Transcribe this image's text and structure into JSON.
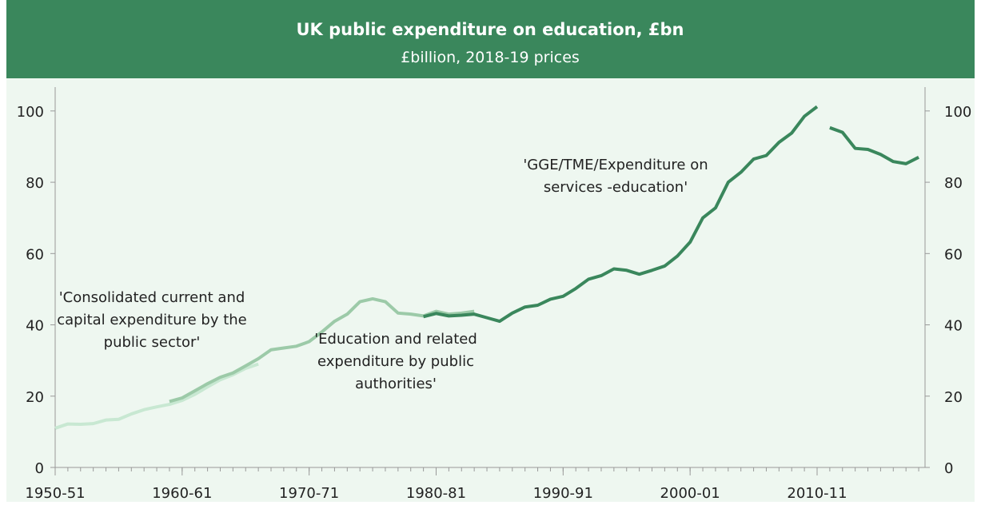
{
  "chart_data": {
    "type": "line",
    "title": "UK public expenditure on education, £bn",
    "subtitle": "£billion, 2018-19 prices",
    "xlim": [
      1950,
      2018.5
    ],
    "xticks": [
      {
        "value": 1950,
        "label": "1950-51"
      },
      {
        "value": 1960,
        "label": "1960-61"
      },
      {
        "value": 1970,
        "label": "1970-71"
      },
      {
        "value": 1980,
        "label": "1980-81"
      },
      {
        "value": 1990,
        "label": "1990-91"
      },
      {
        "value": 2000,
        "label": "2000-01"
      },
      {
        "value": 2010,
        "label": "2010-11"
      }
    ],
    "ylim": [
      0,
      104
    ],
    "yticks": [
      0,
      20,
      40,
      60,
      80,
      100
    ],
    "y2lim": [
      0,
      104
    ],
    "y2ticks": [
      0,
      20,
      40,
      60,
      80,
      100
    ],
    "series": [
      {
        "name": "'Consolidated current and capital expenditure by the public sector'",
        "color": "#c8e8d2",
        "x": [
          1950,
          1951,
          1952,
          1953,
          1954,
          1955,
          1956,
          1957,
          1958,
          1959,
          1960,
          1961,
          1962,
          1963,
          1964,
          1965,
          1966
        ],
        "values": [
          11,
          12.2,
          12.1,
          12.3,
          13.3,
          13.5,
          15,
          16.2,
          17,
          17.7,
          18.8,
          20.5,
          22.6,
          24.6,
          26,
          27.8,
          29
        ]
      },
      {
        "name": "'Education and related expenditure by public authorities'",
        "color": "#9ccaa8",
        "x": [
          1959,
          1960,
          1961,
          1962,
          1963,
          1964,
          1965,
          1966,
          1967,
          1968,
          1969,
          1970,
          1971,
          1972,
          1973,
          1974,
          1975,
          1976,
          1977,
          1978,
          1979,
          1980,
          1981,
          1982,
          1983
        ],
        "values": [
          18.5,
          19.5,
          21.5,
          23.5,
          25.3,
          26.5,
          28.5,
          30.5,
          33,
          33.5,
          34,
          35.3,
          38,
          41,
          43,
          46.5,
          47.3,
          46.5,
          43.3,
          43,
          42.5,
          43.8,
          43,
          43.3,
          43.8
        ]
      },
      {
        "name": "'GGE/TME/Expenditure on services -education'",
        "color": "#3a875c",
        "x": [
          1979,
          1980,
          1981,
          1982,
          1983,
          1984,
          1985,
          1986,
          1987,
          1988,
          1989,
          1990,
          1991,
          1992,
          1993,
          1994,
          1995,
          1996,
          1997,
          1998,
          1999,
          2000,
          2001,
          2002,
          2003,
          2004,
          2005,
          2006,
          2007,
          2008,
          2009,
          2010,
          2010.5,
          2011,
          2012,
          2013,
          2014,
          2015,
          2016,
          2017,
          2018
        ],
        "values": [
          42.3,
          43.2,
          42.5,
          42.7,
          43,
          42,
          41,
          43.3,
          45,
          45.5,
          47.2,
          48,
          50.2,
          52.8,
          53.8,
          55.7,
          55.3,
          54.2,
          55.3,
          56.5,
          59.3,
          63.2,
          70,
          72.8,
          80,
          82.8,
          86.5,
          87.5,
          91.2,
          93.8,
          98.5,
          101.2,
          null,
          95.3,
          94,
          89.5,
          89.2,
          87.8,
          85.8,
          85.2,
          87
        ]
      }
    ]
  }
}
